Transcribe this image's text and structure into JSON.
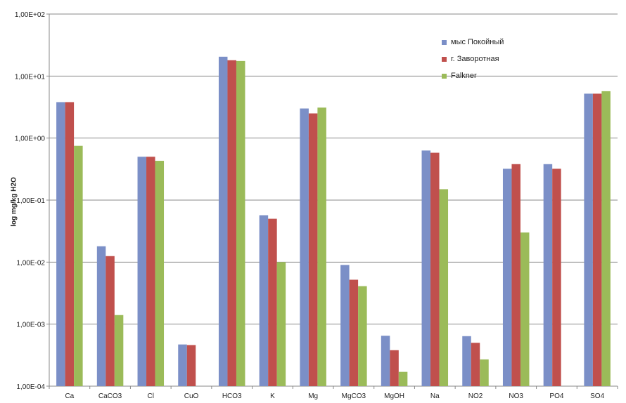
{
  "chart_data": {
    "type": "bar",
    "ylabel": "log mg/kg H2O",
    "yscale": "log",
    "ylim": [
      0.0001,
      100
    ],
    "ytick_values": [
      0.0001,
      0.001,
      0.01,
      0.1,
      1,
      10,
      100
    ],
    "ytick_labels": [
      "1,00E-04",
      "1,00E-03",
      "1,00E-02",
      "1,00E-01",
      "1,00E+00",
      "1,00E+01",
      "1,00E+02"
    ],
    "grid": true,
    "legend_position": "top-right",
    "categories": [
      "Ca",
      "CaCO3",
      "Cl",
      "CuO",
      "HCO3",
      "K",
      "Mg",
      "MgCO3",
      "MgOH",
      "Na",
      "NO2",
      "NO3",
      "PO4",
      "SO4"
    ],
    "series": [
      {
        "name": "мыс Покойный",
        "color": "#7b8fc7",
        "values": [
          3.8,
          0.018,
          0.5,
          0.00047,
          20.5,
          0.057,
          3.0,
          0.009,
          0.00065,
          0.63,
          0.00064,
          0.32,
          0.38,
          5.2
        ]
      },
      {
        "name": "г. Заворотная",
        "color": "#c0504d",
        "values": [
          3.8,
          0.0125,
          0.5,
          0.00046,
          18.0,
          0.05,
          2.5,
          0.0052,
          0.00038,
          0.58,
          0.0005,
          0.38,
          0.32,
          5.2
        ]
      },
      {
        "name": "Falkner",
        "color": "#9bbb59",
        "values": [
          0.75,
          0.0014,
          0.43,
          null,
          17.5,
          0.01,
          3.1,
          0.0041,
          0.00017,
          0.15,
          0.00027,
          0.03,
          null,
          5.7
        ]
      }
    ]
  }
}
